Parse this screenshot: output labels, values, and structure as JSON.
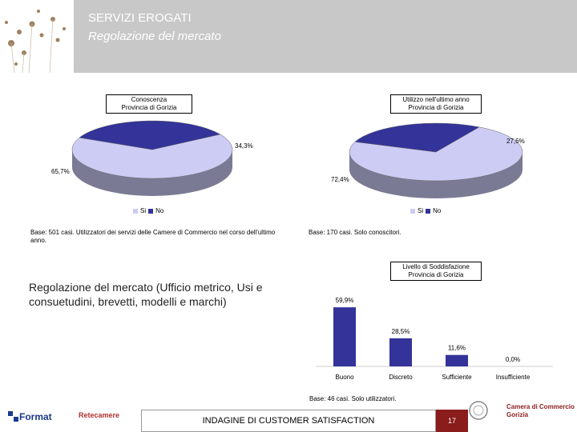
{
  "header": {
    "title": "SERVIZI EROGATI",
    "subtitle": "Regolazione del mercato"
  },
  "legend_labels": {
    "si": "Si",
    "no": "No"
  },
  "chart_data": [
    {
      "type": "pie",
      "title": [
        "Conoscenza",
        "Provincia di Gorizia"
      ],
      "labels": [
        "Si",
        "No"
      ],
      "values": [
        65.7,
        34.3
      ],
      "value_labels": [
        "65,7%",
        "34,3%"
      ],
      "colors": [
        "#ccccf5",
        "#33339a"
      ]
    },
    {
      "type": "pie",
      "title": [
        "Utilizzo nell'ultimo anno",
        "Provincia di Gorizia"
      ],
      "labels": [
        "Si",
        "No"
      ],
      "values": [
        72.4,
        27.6
      ],
      "value_labels": [
        "72,4%",
        "27,6%"
      ],
      "colors": [
        "#ccccf5",
        "#33339a"
      ]
    },
    {
      "type": "bar",
      "title": [
        "Livello di Soddisfazione",
        "Provincia di Gorizia"
      ],
      "categories": [
        "Buono",
        "Discreto",
        "Sufficiente",
        "Insufficiente"
      ],
      "values": [
        59.9,
        28.5,
        11.6,
        0.0
      ],
      "value_labels": [
        "59,9%",
        "28,5%",
        "11,6%",
        "0,0%"
      ],
      "color": "#33339a"
    }
  ],
  "notes": {
    "pie1_base": "Base: 501 casi. Utilizzatori dei servizi delle Camere di Commercio nel corso dell'ultimo anno.",
    "pie2_base": "Base: 170 casi. Solo conoscitori.",
    "bar_base": "Base: 46 casi. Solo utilizzatori."
  },
  "main_text": "Regolazione del mercato (Ufficio metrico, Usi e consuetudini, brevetti, modelli e marchi)",
  "footer": {
    "left_logo": "Format",
    "retecamere_logo": "Retecamere",
    "center_text": "INDAGINE DI CUSTOMER SATISFACTION",
    "page_number": "17",
    "right_logo_line1": "Camera di Commercio",
    "right_logo_line2": "Gorizia"
  }
}
